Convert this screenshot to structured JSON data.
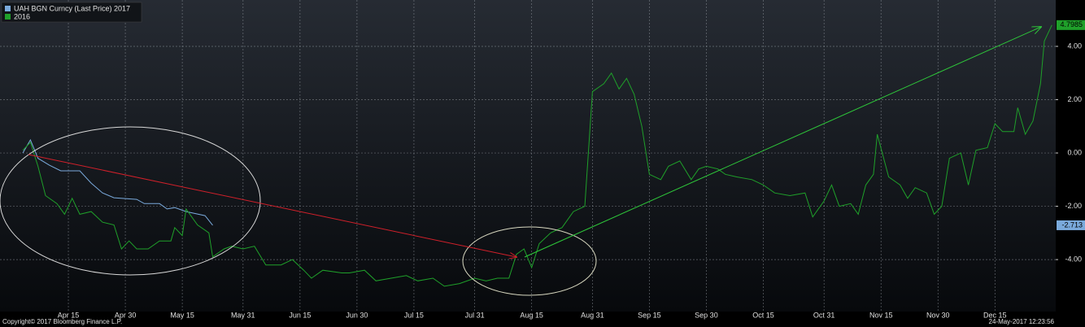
{
  "chart_data": {
    "type": "line",
    "series": [
      {
        "name": "UAH BGN Curncy (Last Price) 2017",
        "color": "#7aaadc",
        "x": [
          "Apr 3",
          "Apr 5",
          "Apr 7",
          "Apr 10",
          "Apr 13",
          "Apr 18",
          "Apr 21",
          "Apr 24",
          "Apr 27",
          "May 3",
          "May 5",
          "May 9",
          "May 11",
          "May 13",
          "May 16",
          "May 21",
          "May 23"
        ],
        "values": [
          0.0,
          0.49,
          -0.2,
          -0.46,
          -0.67,
          -0.67,
          -1.13,
          -1.5,
          -1.68,
          -1.74,
          -1.9,
          -1.9,
          -2.1,
          -2.05,
          -2.2,
          -2.35,
          -2.713
        ]
      },
      {
        "name": "2016",
        "color": "#1fa02a",
        "x": [
          "Apr 3",
          "Apr 5",
          "Apr 7",
          "Apr 9",
          "Apr 12",
          "Apr 14",
          "Apr 16",
          "Apr 18",
          "Apr 21",
          "Apr 24",
          "Apr 27",
          "Apr 29",
          "May 1",
          "May 3",
          "May 6",
          "May 9",
          "May 12",
          "May 13",
          "May 15",
          "May 16",
          "May 19",
          "May 22",
          "May 23",
          "May 26",
          "May 28",
          "May 31",
          "Jun 3",
          "Jun 6",
          "Jun 10",
          "Jun 13",
          "Jun 16",
          "Jun 18",
          "Jun 21",
          "Jun 26",
          "Jun 28",
          "Jul 2",
          "Jul 5",
          "Jul 9",
          "Jul 13",
          "Jul 16",
          "Jul 20",
          "Jul 23",
          "Jul 27",
          "Jul 31",
          "Aug 3",
          "Aug 6",
          "Aug 9",
          "Aug 11",
          "Aug 13",
          "Aug 15",
          "Aug 17",
          "Aug 20",
          "Aug 23",
          "Aug 26",
          "Aug 29",
          "Aug 31",
          "Sep 3",
          "Sep 5",
          "Sep 7",
          "Sep 9",
          "Sep 11",
          "Sep 13",
          "Sep 15",
          "Sep 18",
          "Sep 20",
          "Sep 23",
          "Sep 26",
          "Sep 28",
          "Sep 30",
          "Oct 3",
          "Oct 5",
          "Oct 8",
          "Oct 12",
          "Oct 15",
          "Oct 18",
          "Oct 22",
          "Oct 26",
          "Oct 28",
          "Oct 31",
          "Nov 2",
          "Nov 4",
          "Nov 7",
          "Nov 9",
          "Nov 11",
          "Nov 13",
          "Nov 14",
          "Nov 17",
          "Nov 20",
          "Nov 22",
          "Nov 24",
          "Nov 27",
          "Nov 29",
          "Dec 1",
          "Dec 3",
          "Dec 6",
          "Dec 8",
          "Dec 10",
          "Dec 13",
          "Dec 15",
          "Dec 17",
          "Dec 20",
          "Dec 21",
          "Dec 23",
          "Dec 25",
          "Dec 27",
          "Dec 28",
          "Dec 30"
        ],
        "values": [
          0.1,
          0.4,
          -0.5,
          -1.6,
          -1.9,
          -2.3,
          -1.7,
          -2.3,
          -2.2,
          -2.6,
          -2.7,
          -3.6,
          -3.3,
          -3.6,
          -3.6,
          -3.3,
          -3.3,
          -2.8,
          -3.1,
          -2.1,
          -2.7,
          -3.0,
          -3.9,
          -3.6,
          -3.5,
          -3.6,
          -3.5,
          -4.2,
          -4.2,
          -4.0,
          -4.4,
          -4.7,
          -4.4,
          -4.5,
          -4.5,
          -4.4,
          -4.8,
          -4.7,
          -4.6,
          -4.8,
          -4.7,
          -5.0,
          -4.9,
          -4.7,
          -4.8,
          -4.7,
          -4.7,
          -3.8,
          -3.6,
          -4.3,
          -3.4,
          -3.0,
          -2.8,
          -2.2,
          -2.0,
          2.3,
          2.6,
          3.0,
          2.4,
          2.8,
          2.2,
          1.0,
          -0.8,
          -1.0,
          -0.5,
          -0.3,
          -1.0,
          -0.6,
          -0.5,
          -0.6,
          -0.8,
          -0.9,
          -1.0,
          -1.2,
          -1.5,
          -1.6,
          -1.5,
          -2.4,
          -1.8,
          -1.2,
          -2.0,
          -1.9,
          -2.3,
          -1.2,
          -0.8,
          0.7,
          -0.9,
          -1.2,
          -1.7,
          -1.3,
          -1.5,
          -2.3,
          -2.0,
          -0.2,
          0.0,
          -1.2,
          0.1,
          0.2,
          1.1,
          0.8,
          0.8,
          1.7,
          0.7,
          1.2,
          2.6,
          4.2,
          4.7985
        ]
      }
    ],
    "xlim": [
      "Mar 28",
      "Dec 31"
    ],
    "xticks": [
      "Apr 15",
      "Apr 30",
      "May 15",
      "May 31",
      "Jun 15",
      "Jun 30",
      "Jul 15",
      "Jul 31",
      "Aug 15",
      "Aug 31",
      "Sep 15",
      "Sep 30",
      "Oct 15",
      "Oct 31",
      "Nov 15",
      "Nov 30",
      "Dec 15"
    ],
    "ylim": [
      -5.95,
      5.74
    ],
    "yticks": [
      {
        "value": 4,
        "label": "4.00"
      },
      {
        "value": 2,
        "label": "2.00"
      },
      {
        "value": 0,
        "label": "0.00"
      },
      {
        "value": -2,
        "label": "-2.00"
      },
      {
        "value": -4,
        "label": "-4.00"
      }
    ],
    "grid": true,
    "legend": "top-left",
    "source": "Copyright© 2017 Bloomberg Finance L.P.",
    "timestamp": "24-May-2017 12:23:56"
  }
}
